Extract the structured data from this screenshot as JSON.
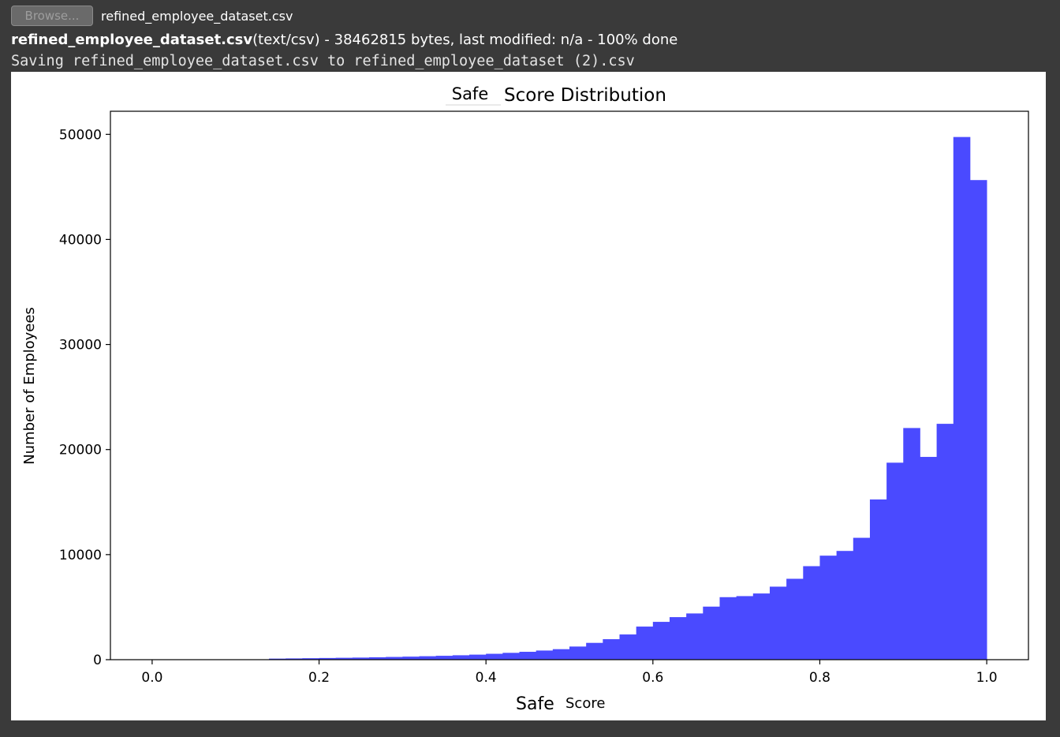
{
  "upload": {
    "browse_label": "Browse...",
    "selected_file": "refined_employee_dataset.csv"
  },
  "status": {
    "file_name": "refined_employee_dataset.csv",
    "file_details": "(text/csv) - 38462815 bytes, last modified: n/a - 100% done",
    "saving_message": "Saving refined_employee_dataset.csv to refined_employee_dataset (2).csv"
  },
  "chart_data": {
    "type": "bar",
    "title_prefix": "Safe",
    "title_rest": "Score Distribution",
    "xlabel_prefix": "Safe",
    "xlabel_rest": "Score",
    "ylabel": "Number of Employees",
    "bar_color": "#4a4aff",
    "xlim": [
      -0.05,
      1.05
    ],
    "ylim": [
      0,
      52200
    ],
    "xticks": [
      0.0,
      0.2,
      0.4,
      0.6,
      0.8,
      1.0
    ],
    "xtick_labels": [
      "0.0",
      "0.2",
      "0.4",
      "0.6",
      "0.8",
      "1.0"
    ],
    "yticks": [
      0,
      10000,
      20000,
      30000,
      40000,
      50000
    ],
    "ytick_labels": [
      "0",
      "10000",
      "20000",
      "30000",
      "40000",
      "50000"
    ],
    "bin_edges": [
      0.14,
      0.16,
      0.18,
      0.2,
      0.22,
      0.24,
      0.26,
      0.28,
      0.3,
      0.32,
      0.34,
      0.36,
      0.38,
      0.4,
      0.42,
      0.44,
      0.46,
      0.48,
      0.5,
      0.52,
      0.54,
      0.56,
      0.58,
      0.6,
      0.62,
      0.64,
      0.66,
      0.68,
      0.7,
      0.72,
      0.74,
      0.76,
      0.78,
      0.8,
      0.82,
      0.84,
      0.86,
      0.88,
      0.9,
      0.92,
      0.94,
      0.96,
      0.98,
      1.0
    ],
    "values": [
      100,
      120,
      140,
      160,
      180,
      200,
      230,
      260,
      290,
      330,
      370,
      420,
      480,
      560,
      650,
      750,
      870,
      1000,
      1250,
      1600,
      1950,
      2400,
      3150,
      3600,
      4050,
      4400,
      5050,
      5950,
      6050,
      6300,
      6950,
      7700,
      8900,
      9900,
      10350,
      11600,
      15250,
      18750,
      22050,
      19300,
      22450,
      49750,
      45650
    ]
  }
}
